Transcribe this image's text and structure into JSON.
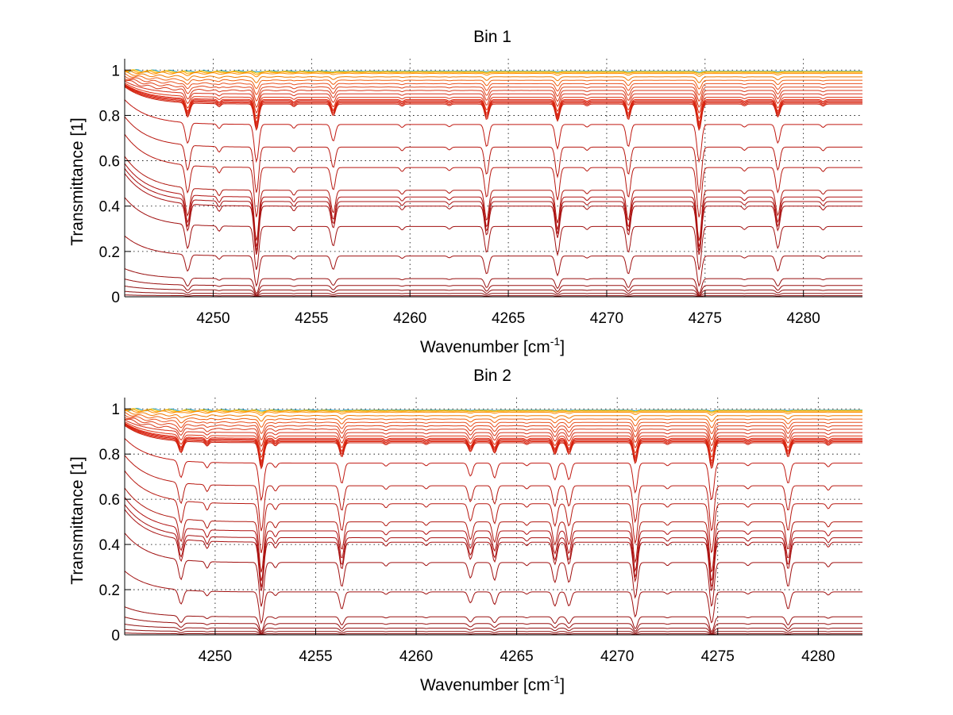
{
  "chart_data": [
    {
      "type": "line",
      "title": "Bin 1",
      "xlabel_main": "Wavenumber [cm",
      "xlabel_sup": "-1",
      "xlabel_tail": "]",
      "ylabel": "Transmittance [1]",
      "xlim": [
        4245.5,
        4283
      ],
      "ylim": [
        0,
        1.05
      ],
      "xticks": [
        4250,
        4255,
        4260,
        4265,
        4270,
        4275,
        4280
      ],
      "yticks": [
        0,
        0.2,
        0.4,
        0.6,
        0.8,
        1
      ],
      "ytick_labels": [
        "0",
        "0.2",
        "0.4",
        "0.6",
        "0.8",
        "1"
      ],
      "grid": true,
      "absorption_lines": [
        {
          "x": 4248.7,
          "depth": 0.55,
          "width": 0.16
        },
        {
          "x": 4252.2,
          "depth": 1.0,
          "width": 0.16
        },
        {
          "x": 4256.1,
          "depth": 0.45,
          "width": 0.15
        },
        {
          "x": 4263.9,
          "depth": 0.6,
          "width": 0.15
        },
        {
          "x": 4267.5,
          "depth": 0.65,
          "width": 0.15
        },
        {
          "x": 4271.1,
          "depth": 0.6,
          "width": 0.15
        },
        {
          "x": 4274.7,
          "depth": 1.0,
          "width": 0.16
        },
        {
          "x": 4278.7,
          "depth": 0.5,
          "width": 0.15
        },
        {
          "x": 4250.3,
          "depth": 0.12,
          "width": 0.12
        },
        {
          "x": 4254.1,
          "depth": 0.1,
          "width": 0.12
        },
        {
          "x": 4259.6,
          "depth": 0.08,
          "width": 0.12
        },
        {
          "x": 4262.0,
          "depth": 0.06,
          "width": 0.12
        },
        {
          "x": 4269.0,
          "depth": 0.07,
          "width": 0.12
        },
        {
          "x": 4277.0,
          "depth": 0.07,
          "width": 0.12
        },
        {
          "x": 4281.0,
          "depth": 0.08,
          "width": 0.12
        }
      ],
      "series_levels": [
        {
          "level": 0.995,
          "color": "#1a9ec8"
        },
        {
          "level": 0.993,
          "color": "#f2c200"
        },
        {
          "level": 0.99,
          "color": "#ffa500"
        },
        {
          "level": 0.985,
          "color": "#ff8c00"
        },
        {
          "level": 0.97,
          "color": "#f07800"
        },
        {
          "level": 0.955,
          "color": "#f06010"
        },
        {
          "level": 0.94,
          "color": "#e85020"
        },
        {
          "level": 0.925,
          "color": "#e04018"
        },
        {
          "level": 0.91,
          "color": "#d83818"
        },
        {
          "level": 0.895,
          "color": "#d83018"
        },
        {
          "level": 0.88,
          "color": "#e03010"
        },
        {
          "level": 0.87,
          "color": "#e02810"
        },
        {
          "level": 0.865,
          "color": "#d82010"
        },
        {
          "level": 0.86,
          "color": "#d02010"
        },
        {
          "level": 0.855,
          "color": "#e02810"
        },
        {
          "level": 0.85,
          "color": "#c82010"
        },
        {
          "level": 0.76,
          "color": "#c01810"
        },
        {
          "level": 0.66,
          "color": "#b81810"
        },
        {
          "level": 0.57,
          "color": "#b81810"
        },
        {
          "level": 0.47,
          "color": "#b01810"
        },
        {
          "level": 0.44,
          "color": "#b01010"
        },
        {
          "level": 0.42,
          "color": "#a81010"
        },
        {
          "level": 0.4,
          "color": "#a81010"
        },
        {
          "level": 0.31,
          "color": "#a01010"
        },
        {
          "level": 0.18,
          "color": "#a01010"
        },
        {
          "level": 0.08,
          "color": "#981010"
        },
        {
          "level": 0.05,
          "color": "#981010"
        },
        {
          "level": 0.03,
          "color": "#901010"
        },
        {
          "level": 0.015,
          "color": "#901010"
        },
        {
          "level": 0.005,
          "color": "#880808"
        }
      ]
    },
    {
      "type": "line",
      "title": "Bin 2",
      "xlabel_main": "Wavenumber [cm",
      "xlabel_sup": "-1",
      "xlabel_tail": "]",
      "ylabel": "Transmittance [1]",
      "xlim": [
        4245.5,
        4282.2
      ],
      "ylim": [
        0,
        1.05
      ],
      "xticks": [
        4250,
        4255,
        4260,
        4265,
        4270,
        4275,
        4280
      ],
      "yticks": [
        0,
        0.2,
        0.4,
        0.6,
        0.8,
        1
      ],
      "ytick_labels": [
        "0",
        "0.2",
        "0.4",
        "0.6",
        "0.8",
        "1"
      ],
      "grid": true,
      "absorption_lines": [
        {
          "x": 4248.3,
          "depth": 0.45,
          "width": 0.16
        },
        {
          "x": 4252.3,
          "depth": 1.0,
          "width": 0.16
        },
        {
          "x": 4256.3,
          "depth": 0.55,
          "width": 0.15
        },
        {
          "x": 4262.7,
          "depth": 0.35,
          "width": 0.15
        },
        {
          "x": 4263.9,
          "depth": 0.4,
          "width": 0.15
        },
        {
          "x": 4266.9,
          "depth": 0.45,
          "width": 0.15
        },
        {
          "x": 4267.6,
          "depth": 0.45,
          "width": 0.15
        },
        {
          "x": 4270.9,
          "depth": 0.8,
          "width": 0.15
        },
        {
          "x": 4274.7,
          "depth": 1.0,
          "width": 0.16
        },
        {
          "x": 4278.5,
          "depth": 0.55,
          "width": 0.15
        },
        {
          "x": 4249.6,
          "depth": 0.15,
          "width": 0.12
        },
        {
          "x": 4253.0,
          "depth": 0.12,
          "width": 0.12
        },
        {
          "x": 4258.5,
          "depth": 0.08,
          "width": 0.12
        },
        {
          "x": 4260.5,
          "depth": 0.07,
          "width": 0.12
        },
        {
          "x": 4265.5,
          "depth": 0.07,
          "width": 0.12
        },
        {
          "x": 4272.5,
          "depth": 0.07,
          "width": 0.12
        },
        {
          "x": 4276.5,
          "depth": 0.07,
          "width": 0.12
        },
        {
          "x": 4280.5,
          "depth": 0.1,
          "width": 0.12
        }
      ],
      "series_levels": [
        {
          "level": 0.995,
          "color": "#1a9ec8"
        },
        {
          "level": 0.993,
          "color": "#f2c200"
        },
        {
          "level": 0.99,
          "color": "#ffa500"
        },
        {
          "level": 0.985,
          "color": "#ff8c00"
        },
        {
          "level": 0.97,
          "color": "#f07800"
        },
        {
          "level": 0.955,
          "color": "#f06010"
        },
        {
          "level": 0.94,
          "color": "#e85020"
        },
        {
          "level": 0.925,
          "color": "#e04018"
        },
        {
          "level": 0.91,
          "color": "#d83818"
        },
        {
          "level": 0.895,
          "color": "#d83018"
        },
        {
          "level": 0.88,
          "color": "#e03010"
        },
        {
          "level": 0.87,
          "color": "#e02810"
        },
        {
          "level": 0.865,
          "color": "#d82010"
        },
        {
          "level": 0.86,
          "color": "#d02010"
        },
        {
          "level": 0.855,
          "color": "#e02810"
        },
        {
          "level": 0.85,
          "color": "#c82010"
        },
        {
          "level": 0.76,
          "color": "#c01810"
        },
        {
          "level": 0.66,
          "color": "#b81810"
        },
        {
          "level": 0.58,
          "color": "#b81810"
        },
        {
          "level": 0.5,
          "color": "#b01810"
        },
        {
          "level": 0.46,
          "color": "#b01010"
        },
        {
          "level": 0.43,
          "color": "#a81010"
        },
        {
          "level": 0.41,
          "color": "#a81010"
        },
        {
          "level": 0.32,
          "color": "#a01010"
        },
        {
          "level": 0.19,
          "color": "#a01010"
        },
        {
          "level": 0.08,
          "color": "#981010"
        },
        {
          "level": 0.05,
          "color": "#981010"
        },
        {
          "level": 0.03,
          "color": "#901010"
        },
        {
          "level": 0.015,
          "color": "#901010"
        },
        {
          "level": 0.005,
          "color": "#880808"
        }
      ]
    }
  ]
}
